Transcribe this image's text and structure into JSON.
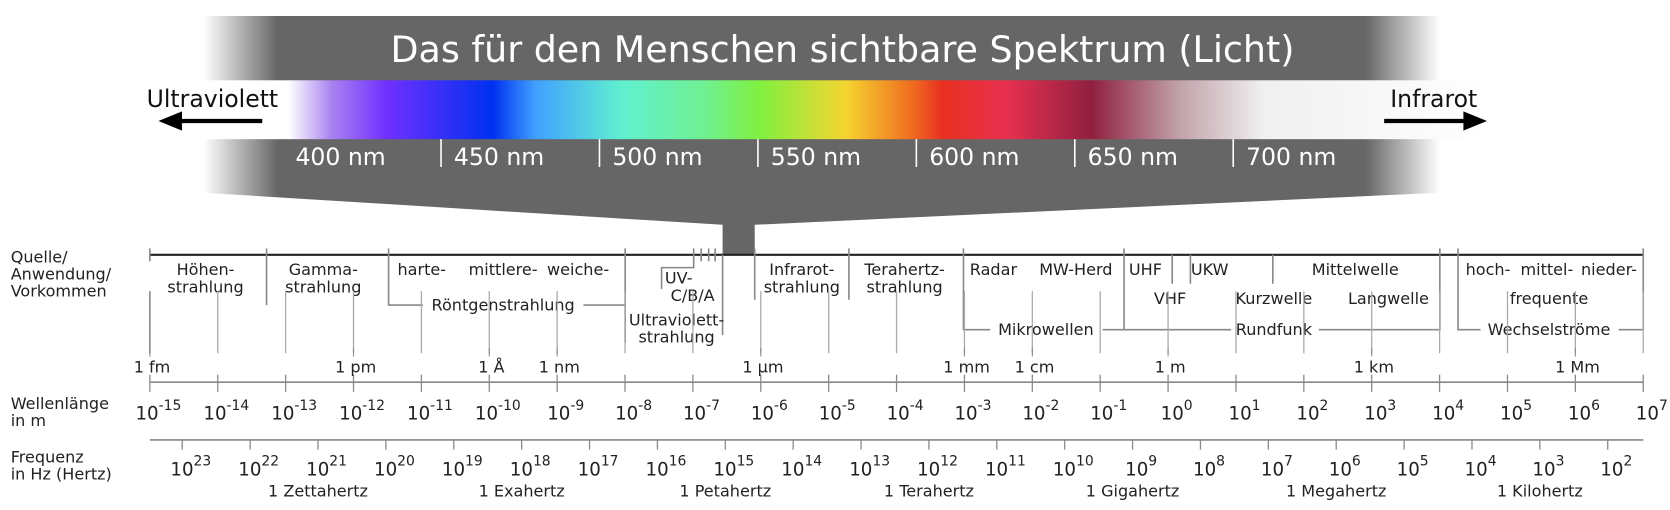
{
  "spectrum": {
    "title": "Das für den Menschen sichtbare Spektrum (Licht)",
    "left_label": "Ultraviolett",
    "right_label": "Infrarot",
    "nm_labels": [
      "400 nm",
      "450 nm",
      "500 nm",
      "550 nm",
      "600 nm",
      "650 nm",
      "700 nm"
    ]
  },
  "row_labels": {
    "source": [
      "Quelle/",
      "Anwendung/",
      "Vorkommen"
    ],
    "wavelength": [
      "Wellenlänge",
      "in m"
    ],
    "frequency": [
      "Frequenz",
      "in Hz (Hertz)"
    ]
  },
  "sources": [
    [
      "Höhen-",
      "strahlung"
    ],
    [
      "Gamma-",
      "strahlung"
    ],
    "harte-",
    "mittlere-",
    "weiche-",
    "Röntgenstrahlung",
    "UV-",
    "C/B/A",
    [
      "Ultraviolett-",
      "strahlung"
    ],
    [
      "Infrarot-",
      "strahlung"
    ],
    [
      "Terahertz-",
      "strahlung"
    ],
    "Radar",
    "MW-Herd",
    "Mikrowellen",
    "UHF",
    "VHF",
    "UKW",
    "Kurzwelle",
    "Mittelwelle",
    "Langwelle",
    "Rundfunk",
    "hoch-",
    "mittel-",
    "nieder-",
    "frequente",
    "Wechselströme"
  ],
  "wavelength_units": [
    "1 fm",
    "1 pm",
    "1 Å",
    "1 nm",
    "1 µm",
    "1 mm",
    "1 cm",
    "1 m",
    "1 km",
    "1 Mm"
  ],
  "base": "10",
  "wavelength_exponents": [
    -15,
    -14,
    -13,
    -12,
    -11,
    -10,
    -9,
    -8,
    -7,
    -6,
    -5,
    -4,
    -3,
    -2,
    -1,
    0,
    1,
    2,
    3,
    4,
    5,
    6,
    7
  ],
  "frequency_exponents": [
    23,
    22,
    21,
    20,
    19,
    18,
    17,
    16,
    15,
    14,
    13,
    12,
    11,
    10,
    9,
    8,
    7,
    6,
    5,
    4,
    3,
    2
  ],
  "frequency_units": [
    "1 Zettahertz",
    "1 Exahertz",
    "1 Petahertz",
    "1 Terahertz",
    "1 Gigahertz",
    "1 Megahertz",
    "1 Kilohertz"
  ]
}
